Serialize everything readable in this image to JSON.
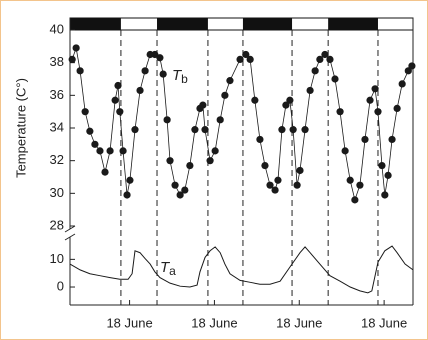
{
  "chart_data": [
    {
      "type": "scatter",
      "ylabel": "Temperature (C°)",
      "annotation": {
        "text": "T",
        "sub": "b"
      },
      "color": "#1a1a1a",
      "xlim": [
        0,
        95
      ],
      "ylim": [
        28,
        40
      ],
      "yticks": [
        28,
        30,
        32,
        34,
        36,
        38,
        40
      ],
      "dark_periods": [
        [
          0,
          14.1
        ],
        [
          24.1,
          38.2
        ],
        [
          47.9,
          61.5
        ],
        [
          71.5,
          85.3
        ]
      ],
      "x": [
        0.6,
        1.7,
        2.8,
        4.2,
        5.5,
        6.9,
        8.3,
        9.7,
        11.1,
        12.5,
        13.3,
        13.8,
        14.7,
        15.8,
        16.6,
        18.0,
        19.4,
        20.8,
        22.2,
        23.5,
        24.9,
        25.8,
        26.9,
        27.7,
        29.1,
        30.5,
        31.8,
        33.2,
        34.6,
        36.0,
        36.8,
        37.4,
        38.8,
        40.2,
        41.6,
        42.9,
        44.3,
        47.1,
        48.7,
        49.9,
        51.2,
        52.6,
        54.0,
        55.4,
        56.8,
        57.6,
        58.7,
        59.8,
        60.9,
        61.8,
        62.9,
        63.7,
        65.1,
        66.5,
        67.9,
        69.2,
        70.6,
        72.0,
        73.4,
        74.8,
        76.2,
        77.6,
        78.9,
        80.3,
        81.7,
        83.1,
        84.5,
        85.3,
        86.4,
        87.2,
        88.1,
        89.2,
        90.6,
        92.0,
        93.7,
        94.7
      ],
      "values": [
        38.2,
        38.9,
        37.5,
        35.0,
        33.8,
        33.0,
        32.6,
        31.3,
        32.6,
        35.7,
        36.6,
        35.0,
        32.6,
        29.9,
        30.8,
        33.9,
        36.3,
        37.5,
        38.5,
        38.5,
        38.3,
        37.3,
        34.5,
        32.0,
        30.5,
        29.9,
        30.2,
        31.7,
        33.9,
        35.2,
        35.4,
        33.9,
        32.0,
        32.6,
        34.5,
        36.0,
        36.9,
        38.2,
        38.5,
        38.2,
        35.7,
        33.3,
        31.7,
        30.5,
        30.2,
        30.8,
        33.9,
        35.4,
        35.7,
        33.9,
        30.5,
        31.4,
        33.9,
        36.3,
        37.5,
        38.2,
        38.5,
        38.2,
        37.0,
        35.0,
        32.6,
        30.8,
        29.6,
        30.5,
        33.3,
        35.7,
        36.4,
        35.0,
        31.7,
        29.9,
        31.1,
        33.3,
        35.2,
        36.7,
        37.5,
        37.8
      ]
    },
    {
      "type": "line",
      "annotation": {
        "text": "T",
        "sub": "a"
      },
      "color": "#1a1a1a",
      "xlim": [
        0,
        95
      ],
      "ylim": [
        -6.5,
        17
      ],
      "yticks": [
        0,
        10
      ],
      "xticks": [
        {
          "value": 16.5,
          "label": "18 June"
        },
        {
          "value": 40,
          "label": "18 June"
        },
        {
          "value": 63.5,
          "label": "18 June"
        },
        {
          "value": 87,
          "label": "18 June"
        }
      ],
      "x": [
        0,
        2.8,
        5.5,
        8.3,
        11.1,
        13.8,
        16.1,
        17.2,
        18.0,
        19.4,
        20.8,
        22.2,
        23.5,
        24.9,
        27.7,
        30.5,
        33.2,
        35.2,
        36.0,
        37.4,
        38.8,
        40.2,
        41.6,
        42.9,
        44.3,
        47.1,
        49.9,
        52.6,
        55.4,
        58.2,
        60.9,
        63.7,
        65.1,
        66.5,
        69.2,
        72.0,
        74.8,
        77.6,
        80.3,
        82.5,
        83.6,
        85.3,
        87.2,
        89.2,
        90.6,
        92.8,
        95.0
      ],
      "values": [
        8.3,
        6.2,
        4.8,
        4.1,
        3.4,
        2.8,
        2.8,
        4.8,
        13.1,
        12.4,
        10.3,
        8.3,
        5.5,
        3.4,
        1.4,
        0.3,
        0,
        0.7,
        5.5,
        10.7,
        13.1,
        14.5,
        12.4,
        8.3,
        4.8,
        2.4,
        1.7,
        1.0,
        1.0,
        2.1,
        7.2,
        12.4,
        14.5,
        12.4,
        8.3,
        4.1,
        2.1,
        0,
        -1.4,
        -2.1,
        -1.4,
        9.0,
        13.1,
        14.8,
        12.4,
        8.3,
        6.2
      ]
    }
  ]
}
